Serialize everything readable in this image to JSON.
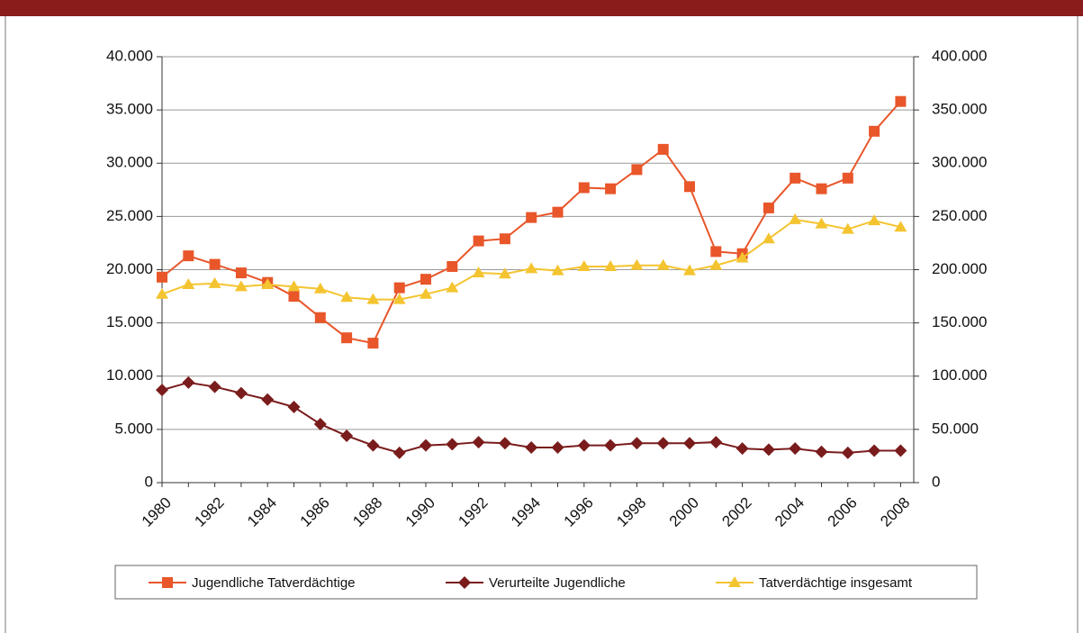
{
  "chart_data": {
    "type": "line",
    "categories": [
      "1980",
      null,
      "1982",
      null,
      "1984",
      null,
      "1986",
      null,
      "1988",
      null,
      "1990",
      null,
      "1992",
      null,
      "1994",
      null,
      "1996",
      null,
      "1998",
      null,
      "2000",
      null,
      "2002",
      null,
      "2004",
      null,
      "2006",
      null,
      "2008"
    ],
    "ylim": [
      0,
      40000
    ],
    "yticks": [
      0,
      {
        "value": 5000,
        "label": "5.000"
      },
      {
        "value": 10000,
        "label": "10.000"
      },
      {
        "value": 15000,
        "label": "15.000"
      },
      {
        "value": 20000,
        "label": "20.000"
      },
      {
        "value": 25000,
        "label": "25.000"
      },
      {
        "value": 30000,
        "label": "30.000"
      },
      {
        "value": 35000,
        "label": "35.000"
      },
      {
        "value": 40000,
        "label": "40.000"
      }
    ],
    "y2lim": [
      0,
      400000
    ],
    "y2ticks": [
      0,
      {
        "value": 50000,
        "label": "50.000"
      },
      {
        "value": 100000,
        "label": "100.000"
      },
      {
        "value": 150000,
        "label": "150.000"
      },
      {
        "value": 200000,
        "label": "200.000"
      },
      {
        "value": 250000,
        "label": "250.000"
      },
      {
        "value": 300000,
        "label": "300.000"
      },
      {
        "value": 350000,
        "label": "350.000"
      },
      {
        "value": 400000,
        "label": "400.000"
      }
    ],
    "grid": true,
    "legend": "bottom",
    "series": [
      {
        "name": "Jugendliche Tatverdächtige",
        "color": "#e8562a",
        "marker": "square",
        "values": [
          19300,
          21300,
          20500,
          19700,
          18800,
          17500,
          15500,
          13600,
          13100,
          18300,
          19100,
          20300,
          22700,
          22900,
          24900,
          25400,
          27700,
          27600,
          29400,
          31300,
          27800,
          21700,
          21500,
          25800,
          28600,
          27600,
          28600,
          33000,
          35800
        ]
      },
      {
        "name": "Verurteilte Jugendliche",
        "color": "#7a1c1c",
        "marker": "diamond",
        "values": [
          8700,
          9400,
          9000,
          8400,
          7800,
          7100,
          5500,
          4400,
          3500,
          2800,
          3500,
          3600,
          3800,
          3700,
          3300,
          3300,
          3500,
          3500,
          3700,
          3700,
          3700,
          3800,
          3200,
          3100,
          3200,
          2900,
          2800,
          3000,
          3000
        ]
      },
      {
        "name": "Tatverdächtige insgesamt",
        "color": "#f4c430",
        "marker": "triangle",
        "axis": "y2",
        "values": [
          177000,
          186000,
          187000,
          184000,
          186000,
          184000,
          182000,
          174000,
          172000,
          172000,
          177000,
          183000,
          197000,
          196000,
          201000,
          199000,
          203000,
          203000,
          204000,
          204000,
          199000,
          204000,
          211000,
          229000,
          247000,
          243000,
          238000,
          246000,
          240000
        ]
      }
    ]
  }
}
